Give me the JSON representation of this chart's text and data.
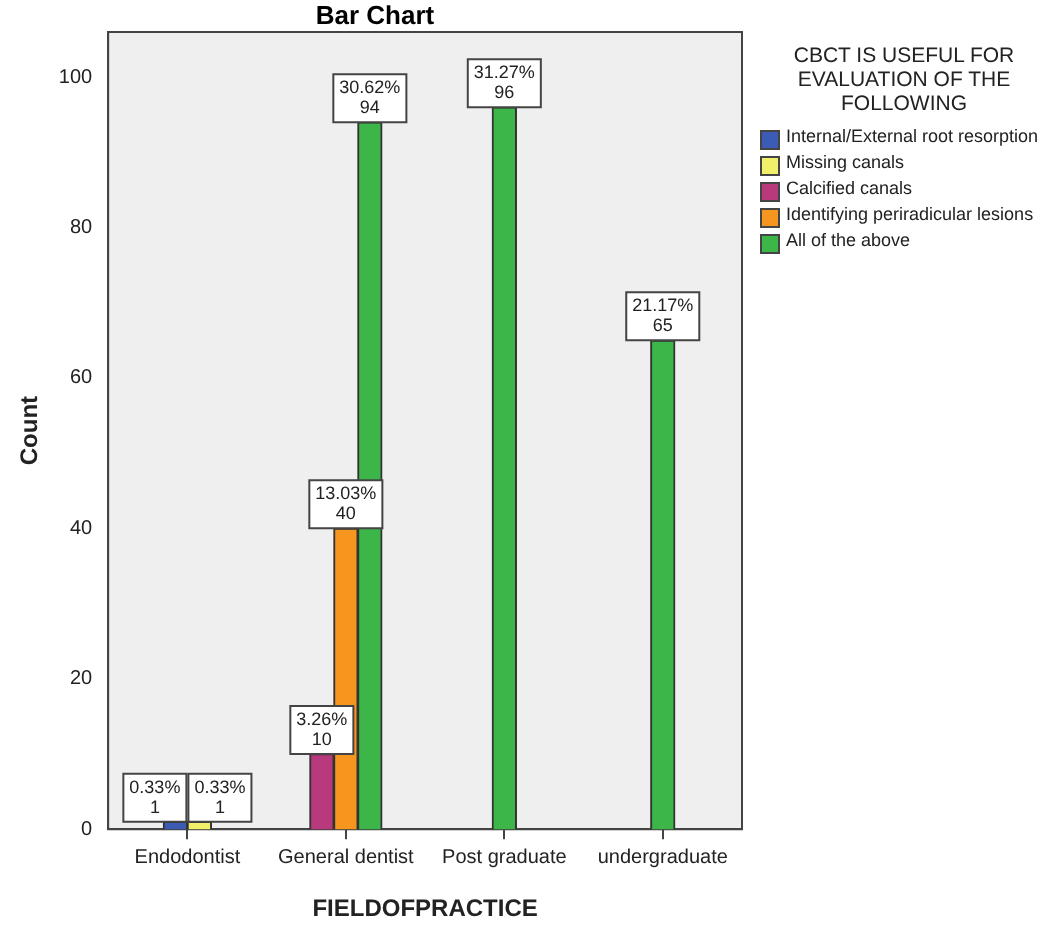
{
  "chart_data": {
    "type": "bar",
    "title": "Bar Chart",
    "xlabel": "FIELDOFPRACTICE",
    "ylabel": "Count",
    "legend_title": "CBCT IS USEFUL FOR EVALUATION OF THE FOLLOWING",
    "categories": [
      "Endodontist",
      "General dentist",
      "Post graduate",
      "undergraduate"
    ],
    "series": [
      {
        "name": "Internal/External root resorption",
        "color": "#3b5bb5",
        "values": [
          1,
          null,
          null,
          null
        ],
        "value_labels": [
          "0.33%\n1",
          null,
          null,
          null
        ]
      },
      {
        "name": "Missing canals",
        "color": "#f2ef6a",
        "values": [
          1,
          null,
          null,
          null
        ],
        "value_labels": [
          "0.33%\n1",
          null,
          null,
          null
        ]
      },
      {
        "name": "Calcified canals",
        "color": "#b83a7c",
        "values": [
          null,
          10,
          null,
          null
        ],
        "value_labels": [
          null,
          "3.26%\n10",
          null,
          null
        ]
      },
      {
        "name": "Identifying periradicular lesions",
        "color": "#f7961e",
        "values": [
          null,
          40,
          null,
          null
        ],
        "value_labels": [
          null,
          "13.03%\n40",
          null,
          null
        ]
      },
      {
        "name": "All of the above",
        "color": "#3cb648",
        "values": [
          null,
          94,
          96,
          65
        ],
        "value_labels": [
          null,
          "30.62%\n94",
          "31.27%\n96",
          "21.17%\n65"
        ]
      }
    ],
    "ylim": [
      0,
      106
    ],
    "yticks": [
      0,
      20,
      40,
      60,
      80,
      100
    ],
    "grid": false,
    "legend": "right"
  }
}
